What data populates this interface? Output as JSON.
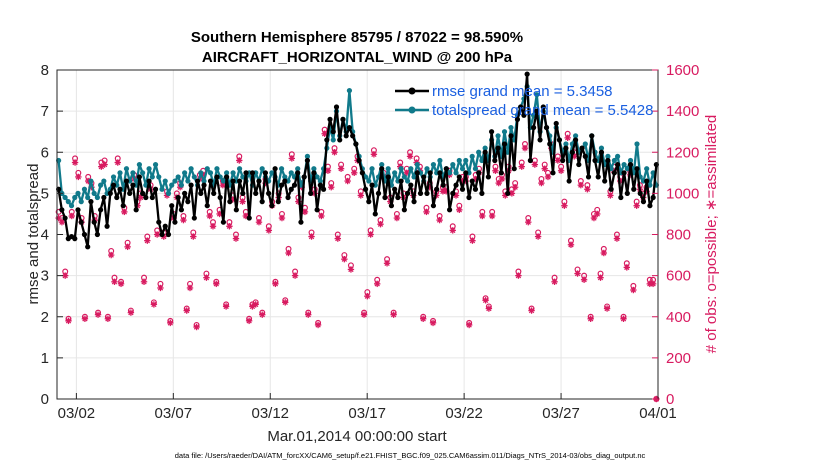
{
  "chart_data": {
    "type": "line",
    "title_line1": "Southern Hemisphere 85795 / 87022 = 98.590%",
    "title_line2": "AIRCRAFT_HORIZONTAL_WIND @ 200 hPa",
    "xlabel": "Mar.01,2014 00:00:00 start",
    "ylabel_left": "rmse and totalspread",
    "ylabel_right": "# of obs: o=possible; ∗=assimilated",
    "x_range": [
      0,
      31
    ],
    "ylim_left": [
      0,
      8
    ],
    "ylim_right": [
      0,
      1600
    ],
    "x_ticks": [
      {
        "value": 1,
        "label": "03/02"
      },
      {
        "value": 6,
        "label": "03/07"
      },
      {
        "value": 11,
        "label": "03/12"
      },
      {
        "value": 16,
        "label": "03/17"
      },
      {
        "value": 21,
        "label": "03/22"
      },
      {
        "value": 26,
        "label": "03/27"
      },
      {
        "value": 31,
        "label": "04/01"
      }
    ],
    "y_ticks_left": [
      "0",
      "1",
      "2",
      "3",
      "4",
      "5",
      "6",
      "7",
      "8"
    ],
    "y_ticks_right": [
      "0",
      "200",
      "400",
      "600",
      "800",
      "1000",
      "1200",
      "1400",
      "1600"
    ],
    "legend": [
      "rmse grand mean = 5.3458",
      "totalspread grand mean = 5.5428"
    ],
    "series": [
      {
        "name": "rmse",
        "color": "#000000",
        "values": [
          5.1,
          4.6,
          4.4,
          3.9,
          3.95,
          3.9,
          4.6,
          4.3,
          4.0,
          3.7,
          4.8,
          4.3,
          4.0,
          4.6,
          4.9,
          4.2,
          5.0,
          5.2,
          4.9,
          5.1,
          4.7,
          5.3,
          5.0,
          5.2,
          4.6,
          5.4,
          5.0,
          4.9,
          5.3,
          4.9,
          5.1,
          4.3,
          4.0,
          4.2,
          4.0,
          4.7,
          4.3,
          4.9,
          4.6,
          5.0,
          4.8,
          5.2,
          4.4,
          5.3,
          5.0,
          5.2,
          4.7,
          5.3,
          5.0,
          5.4,
          4.9,
          4.3,
          5.4,
          4.8,
          5.3,
          4.6,
          5.3,
          5.0,
          5.5,
          4.4,
          5.5,
          5.0,
          5.3,
          4.8,
          5.5,
          5.0,
          4.7,
          5.6,
          4.8,
          5.2,
          5.3,
          4.9,
          5.1,
          5.2,
          5.5,
          4.3,
          5.4,
          5.8,
          5.0,
          5.5,
          4.6,
          5.2,
          5.1,
          6.3,
          6.8,
          6.5,
          7.1,
          6.3,
          6.8,
          6.4,
          6.6,
          6.4,
          6.2,
          5.8,
          5.5,
          5.1,
          4.8,
          5.2,
          4.5,
          5.0,
          5.6,
          4.9,
          5.4,
          4.7,
          5.1,
          4.9,
          5.3,
          4.6,
          5.0,
          5.2,
          4.8,
          5.5,
          5.0,
          5.4,
          5.0,
          5.5,
          4.7,
          5.1,
          5.5,
          5.2,
          5.6,
          4.6,
          5.0,
          5.2,
          5.4,
          5.1,
          5.5,
          4.9,
          5.3,
          5.1,
          5.5,
          5.0,
          6.0,
          5.4,
          6.5,
          5.8,
          6.1,
          5.5,
          6.2,
          5.0,
          6.4,
          5.6,
          6.8,
          7.1,
          6.9,
          7.9,
          5.8,
          6.6,
          7.0,
          6.3,
          7.1,
          6.6,
          6.2,
          5.5,
          6.7,
          6.3,
          5.8,
          6.1,
          5.3,
          6.0,
          6.3,
          5.7,
          6.1,
          5.9,
          5.4,
          6.4,
          5.8,
          5.4,
          6.0,
          5.3,
          5.8,
          5.1,
          5.5,
          5.7,
          4.9,
          5.5,
          5.0,
          5.7,
          5.1,
          5.6,
          5.0,
          4.8,
          5.3,
          4.7,
          4.9,
          5.7
        ]
      },
      {
        "name": "totalspread",
        "color": "#117a8b",
        "values": [
          5.8,
          5.0,
          4.9,
          4.8,
          4.7,
          4.9,
          5.0,
          4.8,
          5.1,
          4.9,
          5.3,
          5.0,
          4.9,
          5.2,
          5.3,
          5.0,
          5.1,
          5.4,
          5.2,
          5.5,
          5.1,
          5.6,
          5.3,
          5.5,
          5.2,
          5.7,
          5.5,
          5.2,
          5.6,
          5.4,
          5.7,
          5.4,
          5.1,
          5.3,
          5.0,
          5.2,
          5.3,
          5.4,
          5.2,
          5.5,
          5.3,
          5.6,
          5.4,
          5.2,
          5.5,
          5.3,
          5.6,
          5.5,
          5.2,
          5.6,
          5.4,
          5.3,
          5.5,
          5.2,
          5.5,
          5.3,
          5.6,
          5.4,
          5.3,
          5.5,
          5.2,
          5.5,
          5.3,
          5.6,
          5.4,
          5.3,
          5.5,
          5.4,
          5.2,
          5.6,
          5.4,
          5.3,
          5.5,
          5.4,
          5.6,
          5.2,
          5.4,
          5.9,
          5.3,
          5.6,
          5.4,
          5.3,
          5.6,
          6.1,
          6.6,
          6.3,
          7.0,
          6.4,
          6.8,
          6.5,
          7.5,
          6.5,
          6.2,
          5.9,
          5.6,
          5.4,
          5.3,
          5.6,
          5.2,
          5.4,
          5.7,
          5.3,
          5.6,
          5.2,
          5.5,
          5.3,
          5.6,
          5.4,
          5.3,
          5.6,
          5.4,
          5.7,
          5.5,
          5.3,
          5.6,
          5.4,
          5.7,
          5.5,
          5.8,
          5.4,
          5.6,
          5.5,
          5.7,
          5.5,
          5.8,
          5.6,
          5.8,
          5.5,
          5.9,
          5.6,
          6.0,
          5.8,
          6.1,
          5.8,
          6.3,
          5.9,
          6.4,
          5.9,
          6.5,
          6.0,
          6.6,
          6.3,
          6.9,
          7.1,
          7.3,
          7.6,
          6.6,
          6.9,
          7.4,
          6.5,
          7.0,
          6.6,
          6.4,
          6.0,
          6.6,
          6.3,
          6.0,
          6.2,
          5.8,
          6.2,
          6.4,
          6.0,
          6.1,
          6.2,
          5.8,
          6.4,
          6.0,
          5.8,
          6.1,
          5.7,
          5.9,
          5.6,
          5.8,
          5.9,
          5.5,
          5.7,
          5.6,
          5.8,
          5.5,
          6.2,
          5.4,
          5.3,
          5.6,
          5.2,
          5.5,
          5.2
        ]
      }
    ],
    "obs_possible": [
      910,
      880,
      620,
      390,
      910,
      1170,
      1100,
      880,
      400,
      1080,
      1050,
      890,
      420,
      1150,
      1160,
      400,
      720,
      590,
      1170,
      570,
      930,
      760,
      430,
      1090,
      960,
      1000,
      590,
      790,
      1040,
      470,
      820,
      560,
      810,
      1010,
      380,
      900,
      1000,
      1050,
      890,
      440,
      560,
      810,
      360,
      1090,
      1110,
      610,
      910,
      860,
      570,
      920,
      1060,
      460,
      860,
      990,
      800,
      1180,
      980,
      910,
      390,
      460,
      470,
      880,
      420,
      1070,
      840,
      960,
      570,
      1000,
      900,
      480,
      730,
      1190,
      620,
      980,
      1050,
      930,
      420,
      810,
      1020,
      370,
      910,
      1310,
      1130,
      1050,
      1220,
      800,
      1140,
      700,
      1080,
      650,
      1120,
      1180,
      1010,
      420,
      520,
      820,
      1210,
      580,
      870,
      1100,
      680,
      980,
      420,
      900,
      1150,
      1000,
      1120,
      1200,
      1010,
      1170,
      1130,
      400,
      930,
      1050,
      380,
      1010,
      890,
      1030,
      1030,
      1110,
      840,
      1010,
      940,
      1080,
      1080,
      370,
      790,
      1090,
      1120,
      910,
      490,
      450,
      910,
      1130,
      1070,
      1090,
      1010,
      1130,
      1020,
      1050,
      620,
      1150,
      1240,
      880,
      440,
      1160,
      810,
      1070,
      1140,
      1100,
      1240,
      590,
      1180,
      1130,
      960,
      1290,
      770,
      1200,
      630,
      1060,
      600,
      1040,
      400,
      900,
      920,
      610,
      730,
      450,
      1010,
      1130,
      800,
      1080,
      400,
      660,
      1110,
      550,
      960,
      1040,
      1000,
      1030,
      580,
      580,
      0
    ],
    "obs_assimilated": [
      880,
      860,
      600,
      380,
      890,
      1150,
      1080,
      860,
      390,
      1060,
      1030,
      870,
      410,
      1130,
      1140,
      390,
      700,
      570,
      1150,
      560,
      910,
      740,
      420,
      1070,
      940,
      980,
      570,
      770,
      1020,
      460,
      800,
      540,
      790,
      990,
      370,
      880,
      980,
      1030,
      870,
      430,
      540,
      790,
      350,
      1070,
      1090,
      590,
      890,
      840,
      560,
      900,
      1040,
      450,
      840,
      970,
      780,
      1160,
      960,
      890,
      380,
      450,
      460,
      860,
      410,
      1050,
      820,
      940,
      560,
      980,
      880,
      470,
      710,
      1170,
      600,
      960,
      1030,
      910,
      410,
      790,
      1000,
      360,
      890,
      1290,
      1110,
      1030,
      1200,
      780,
      1120,
      680,
      1060,
      630,
      1100,
      1160,
      990,
      410,
      500,
      800,
      1190,
      560,
      850,
      1080,
      660,
      960,
      410,
      880,
      1130,
      980,
      1100,
      1180,
      990,
      1150,
      1110,
      390,
      910,
      1030,
      370,
      990,
      870,
      1010,
      1010,
      1090,
      820,
      990,
      920,
      1060,
      1060,
      360,
      770,
      1070,
      1100,
      890,
      480,
      440,
      890,
      1110,
      1050,
      1070,
      990,
      1110,
      1000,
      1030,
      600,
      1130,
      1220,
      860,
      430,
      1140,
      790,
      1050,
      1120,
      1080,
      1220,
      570,
      1160,
      1110,
      940,
      1270,
      750,
      1180,
      610,
      1040,
      580,
      1020,
      390,
      880,
      900,
      590,
      710,
      440,
      990,
      1110,
      780,
      1060,
      390,
      640,
      1090,
      530,
      940,
      1020,
      980,
      1010,
      560,
      560,
      0
    ]
  },
  "footer": "data file: /Users/raeder/DAI/ATM_forcXX/CAM6_setup/f.e21.FHIST_BGC.f09_025.CAM6assim.011/Diags_NTrS_2014-03/obs_diag_output.nc",
  "colors": {
    "rmse": "#000000",
    "totalspread": "#117a8b",
    "obs": "#d81b60",
    "legend_text": "#1a5fe0"
  }
}
